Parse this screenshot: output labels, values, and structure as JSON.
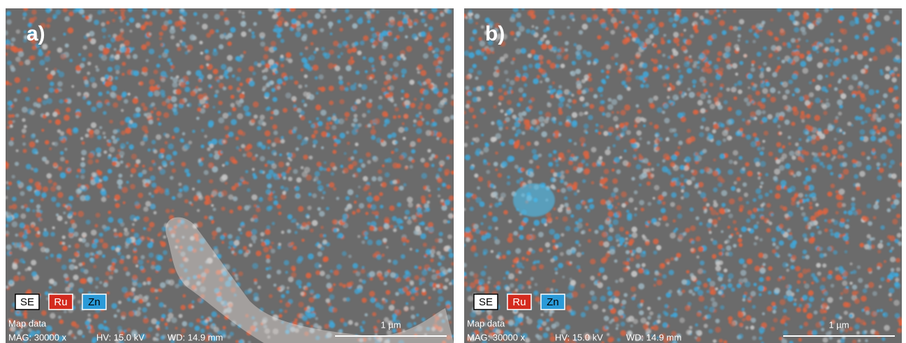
{
  "panels": [
    {
      "label": "a)",
      "legend": [
        "SE",
        "Ru",
        "Zn"
      ],
      "info_title": "Map data",
      "mag": "MAG: 30000 x",
      "hv": "HV: 15.0 kV",
      "wd": "WD: 14.9 mm",
      "scale_bar": "1 µm"
    },
    {
      "label": "b)",
      "legend": [
        "SE",
        "Ru",
        "Zn"
      ],
      "info_title": "Map data",
      "mag": "MAG: 30000 x",
      "hv": "HV: 15.0 kV",
      "wd": "WD: 14.9 mm",
      "scale_bar": "1 µm"
    }
  ]
}
